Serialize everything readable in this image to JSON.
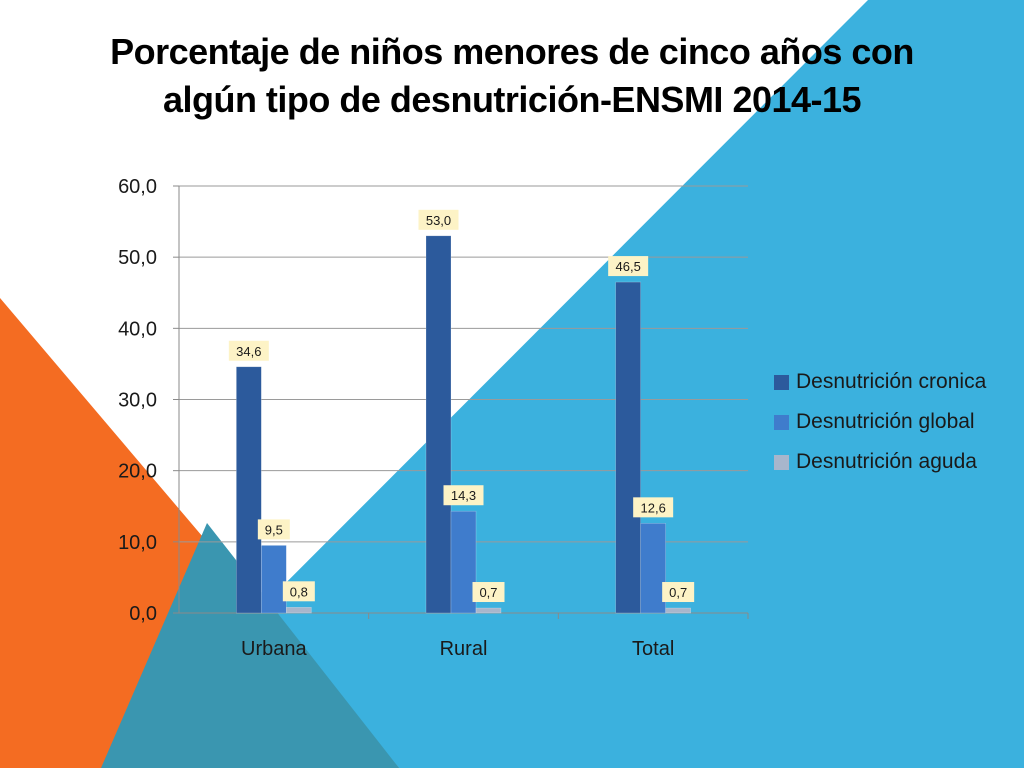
{
  "slide": {
    "colors": {
      "blue": "#3bb1de",
      "orange": "#f46c22",
      "overlap": "#3a96b0",
      "white": "#ffffff"
    }
  },
  "chart_data": {
    "type": "bar",
    "title": "Porcentaje de niños menores de cinco años con algún tipo de desnutrición-ENSMI 2014-15",
    "title_lines": [
      "Porcentaje de niños menores de cinco años con",
      "algún tipo de desnutrición-ENSMI 2014-15"
    ],
    "xlabel": "",
    "ylabel": "",
    "ylim": [
      0,
      60
    ],
    "ytick_step": 10,
    "ytick_labels": [
      "0,0",
      "10,0",
      "20,0",
      "30,0",
      "40,0",
      "50,0",
      "60,0"
    ],
    "grid": true,
    "legend_position": "right",
    "categories": [
      "Urbana",
      "Rural",
      "Total"
    ],
    "series": [
      {
        "name": "Desnutrición cronica",
        "values": [
          34.6,
          53.0,
          46.5
        ],
        "labels": [
          "34,6",
          "53,0",
          "46,5"
        ],
        "color": "#2c5a9c"
      },
      {
        "name": "Desnutrición global",
        "values": [
          9.5,
          14.3,
          12.6
        ],
        "labels": [
          "9,5",
          "14,3",
          "12,6"
        ],
        "color": "#3f7ccc"
      },
      {
        "name": "Desnutrición aguda",
        "values": [
          0.8,
          0.7,
          0.7
        ],
        "labels": [
          "0,8",
          "0,7",
          "0,7"
        ],
        "color": "#a8b6cc"
      }
    ]
  }
}
